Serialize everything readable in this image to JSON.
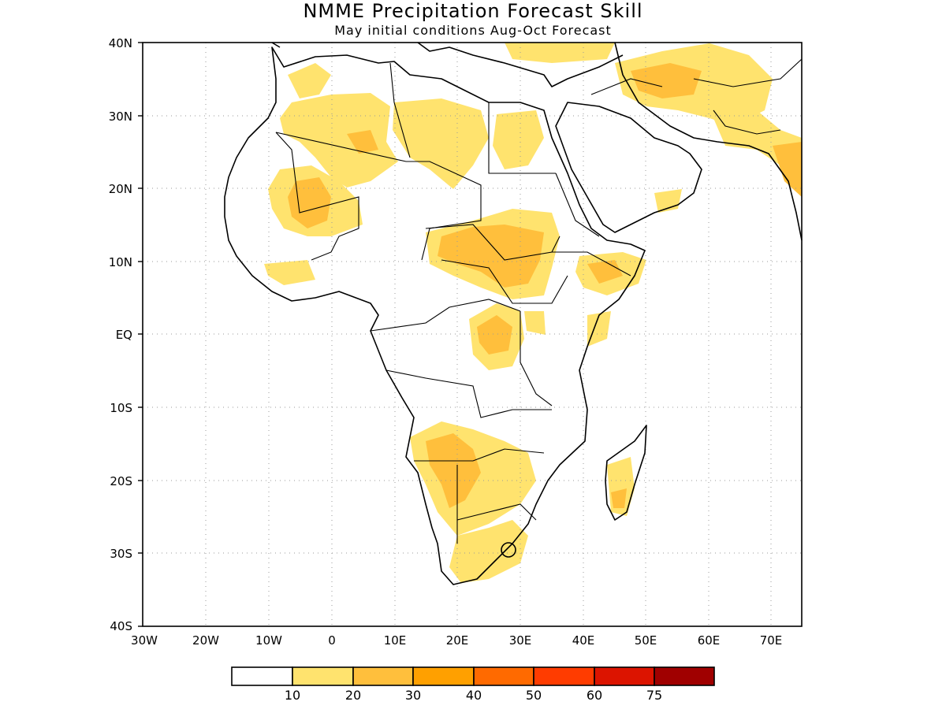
{
  "title": "NMME Precipitation Forecast Skill",
  "subtitle": "May initial conditions  Aug-Oct Forecast",
  "map": {
    "lon_range": [
      -30,
      75
    ],
    "lat_range": [
      -40,
      40
    ],
    "x_tick_labels": [
      "30W",
      "20W",
      "10W",
      "0",
      "10E",
      "20E",
      "30E",
      "40E",
      "50E",
      "60E",
      "70E"
    ],
    "y_tick_labels": [
      "40N",
      "30N",
      "20N",
      "10N",
      "EQ",
      "10S",
      "20S",
      "30S",
      "40S"
    ],
    "gridlines": "dotted",
    "colors": {
      "land_outline": "#000000",
      "coastline": "#000000"
    }
  },
  "colorbar": {
    "levels": [
      "10",
      "20",
      "30",
      "40",
      "50",
      "60",
      "75"
    ],
    "colors": [
      "#ffffff",
      "#ffe36e",
      "#ffbf3c",
      "#ffa000",
      "#ff6a00",
      "#ff3c00",
      "#dc1400",
      "#a00000"
    ]
  },
  "skill_regions": [
    {
      "region": "sahel-west",
      "level": 1
    },
    {
      "region": "sahel-west-core",
      "level": 2
    },
    {
      "region": "sahara-north",
      "level": 1
    },
    {
      "region": "south-sudan",
      "level": 2
    },
    {
      "region": "ethiopia",
      "level": 2
    },
    {
      "region": "central-africa",
      "level": 2
    },
    {
      "region": "zambia-namibia",
      "level": 2
    },
    {
      "region": "south-africa",
      "level": 1
    },
    {
      "region": "madagascar",
      "level": 2
    },
    {
      "region": "iran",
      "level": 1
    },
    {
      "region": "india-west",
      "level": 2
    }
  ]
}
